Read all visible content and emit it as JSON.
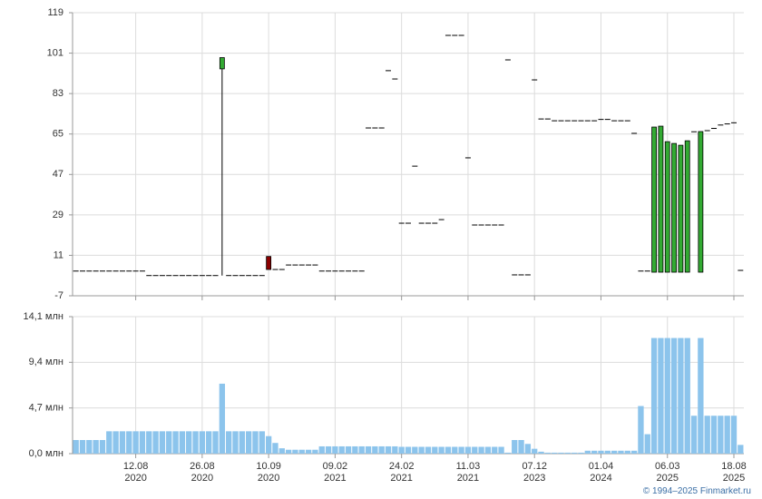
{
  "chart_data": [
    {
      "type": "candlestick",
      "open": [
        4,
        4,
        4,
        4,
        4,
        4,
        4,
        4,
        4,
        4,
        4,
        2,
        2,
        2,
        2,
        2,
        2,
        2,
        2,
        2,
        2,
        2,
        94,
        2,
        2,
        2,
        2,
        2,
        2,
        10.5,
        4.7,
        4.7,
        6.7,
        6.7,
        6.7,
        6.7,
        6.7,
        4,
        4,
        4,
        4,
        4,
        4,
        4,
        67.7,
        67.7,
        67.7,
        93.2,
        89.5,
        25.3,
        25.3,
        50.7,
        25.3,
        25.3,
        25.3,
        26.9,
        108.9,
        108.9,
        108.9,
        54.4,
        24.5,
        24.5,
        24.5,
        24.5,
        24.5,
        98,
        2.3,
        2.3,
        2.3,
        89.1,
        71.7,
        71.7,
        70.9,
        70.9,
        70.9,
        70.9,
        70.9,
        70.9,
        70.9,
        71.5,
        71.5,
        70.9,
        70.9,
        70.9,
        65.3,
        4,
        4,
        3.5,
        3.5,
        3.5,
        3.5,
        3.5,
        3.5,
        66,
        3.5,
        66.5,
        67.5,
        69,
        69.5,
        70,
        4.3
      ],
      "high": [
        4,
        4,
        4,
        4,
        4,
        4,
        4,
        4,
        4,
        4,
        4,
        2,
        2,
        2,
        2,
        2,
        2,
        2,
        2,
        2,
        2,
        2,
        99,
        2,
        2,
        2,
        2,
        2,
        2,
        10.5,
        4.7,
        4.7,
        6.7,
        6.7,
        6.7,
        6.7,
        6.7,
        4,
        4,
        4,
        4,
        4,
        4,
        4,
        67.7,
        67.7,
        67.7,
        93.2,
        89.5,
        25.3,
        25.3,
        50.7,
        25.3,
        25.3,
        25.3,
        26.9,
        108.9,
        108.9,
        108.9,
        54.4,
        24.5,
        24.5,
        24.5,
        24.5,
        24.5,
        98,
        2.3,
        2.3,
        2.3,
        89.1,
        71.7,
        71.7,
        70.9,
        70.9,
        70.9,
        70.9,
        70.9,
        70.9,
        70.9,
        71.5,
        71.5,
        70.9,
        70.9,
        70.9,
        65.3,
        4,
        4,
        68.1,
        68.5,
        61.6,
        60.8,
        60,
        62,
        66,
        66.1,
        66.5,
        67.5,
        69,
        69.5,
        70,
        4.3
      ],
      "low": [
        4,
        4,
        4,
        4,
        4,
        4,
        4,
        4,
        4,
        4,
        4,
        2,
        2,
        2,
        2,
        2,
        2,
        2,
        2,
        2,
        2,
        2,
        2,
        2,
        2,
        2,
        2,
        2,
        2,
        4.7,
        4.7,
        4.7,
        6.7,
        6.7,
        6.7,
        6.7,
        6.7,
        4,
        4,
        4,
        4,
        4,
        4,
        4,
        67.7,
        67.7,
        67.7,
        93.2,
        89.5,
        25.3,
        25.3,
        50.7,
        25.3,
        25.3,
        25.3,
        26.9,
        108.9,
        108.9,
        108.9,
        54.4,
        24.5,
        24.5,
        24.5,
        24.5,
        24.5,
        98,
        2.3,
        2.3,
        2.3,
        89.1,
        71.7,
        71.7,
        70.9,
        70.9,
        70.9,
        70.9,
        70.9,
        70.9,
        70.9,
        71.5,
        71.5,
        70.9,
        70.9,
        70.9,
        65.3,
        4,
        4,
        3.5,
        3.5,
        3.5,
        3.5,
        3.5,
        3.5,
        66,
        3.5,
        66.5,
        67.5,
        69,
        69.5,
        70,
        4.3
      ],
      "close": [
        4,
        4,
        4,
        4,
        4,
        4,
        4,
        4,
        4,
        4,
        4,
        2,
        2,
        2,
        2,
        2,
        2,
        2,
        2,
        2,
        2,
        2,
        99,
        2,
        2,
        2,
        2,
        2,
        2,
        4.7,
        4.7,
        4.7,
        6.7,
        6.7,
        6.7,
        6.7,
        6.7,
        4,
        4,
        4,
        4,
        4,
        4,
        4,
        67.7,
        67.7,
        67.7,
        93.2,
        89.5,
        25.3,
        25.3,
        50.7,
        25.3,
        25.3,
        25.3,
        26.9,
        108.9,
        108.9,
        108.9,
        54.4,
        24.5,
        24.5,
        24.5,
        24.5,
        24.5,
        98,
        2.3,
        2.3,
        2.3,
        89.1,
        71.7,
        71.7,
        70.9,
        70.9,
        70.9,
        70.9,
        70.9,
        70.9,
        70.9,
        71.5,
        71.5,
        70.9,
        70.9,
        70.9,
        65.3,
        4,
        4,
        68.1,
        68.5,
        61.6,
        60.8,
        60,
        62,
        66,
        66.1,
        66.5,
        67.5,
        69,
        69.5,
        70,
        4.3
      ],
      "up_color": "#33aa33",
      "down_color": "#8b0000",
      "ylim": [
        -7,
        119
      ],
      "yticks": [
        -7,
        11,
        29,
        47,
        65,
        83,
        101,
        119
      ],
      "grid": true
    },
    {
      "type": "bar",
      "categories": [
        null,
        null,
        null,
        null,
        null,
        null,
        null,
        null,
        null,
        [
          "12.08",
          "2020"
        ],
        null,
        null,
        null,
        null,
        null,
        null,
        null,
        null,
        null,
        [
          "26.08",
          "2020"
        ],
        null,
        null,
        null,
        null,
        null,
        null,
        null,
        null,
        null,
        [
          "10.09",
          "2020"
        ],
        null,
        null,
        null,
        null,
        null,
        null,
        null,
        null,
        null,
        [
          "09.02",
          "2021"
        ],
        null,
        null,
        null,
        null,
        null,
        null,
        null,
        null,
        null,
        [
          "24.02",
          "2021"
        ],
        null,
        null,
        null,
        null,
        null,
        null,
        null,
        null,
        null,
        [
          "11.03",
          "2021"
        ],
        null,
        null,
        null,
        null,
        null,
        null,
        null,
        null,
        null,
        [
          "07.12",
          "2023"
        ],
        null,
        null,
        null,
        null,
        null,
        null,
        null,
        null,
        null,
        [
          "01.04",
          "2024"
        ],
        null,
        null,
        null,
        null,
        null,
        null,
        null,
        null,
        null,
        [
          "06.03",
          "2025"
        ],
        null,
        null,
        null,
        null,
        null,
        null,
        null,
        null,
        null,
        [
          "18.08",
          "2025"
        ],
        null
      ],
      "values": [
        1.4,
        1.4,
        1.4,
        1.4,
        1.4,
        2.3,
        2.3,
        2.3,
        2.3,
        2.3,
        2.3,
        2.3,
        2.3,
        2.3,
        2.3,
        2.3,
        2.3,
        2.3,
        2.3,
        2.3,
        2.3,
        2.3,
        7.2,
        2.3,
        2.3,
        2.3,
        2.3,
        2.3,
        2.3,
        1.8,
        1.1,
        0.55,
        0.4,
        0.4,
        0.4,
        0.4,
        0.4,
        0.75,
        0.75,
        0.75,
        0.75,
        0.75,
        0.75,
        0.75,
        0.75,
        0.75,
        0.75,
        0.75,
        0.75,
        0.7,
        0.7,
        0.7,
        0.7,
        0.7,
        0.7,
        0.7,
        0.7,
        0.7,
        0.7,
        0.7,
        0.7,
        0.7,
        0.7,
        0.7,
        0.7,
        0.1,
        1.4,
        1.4,
        1.0,
        0.5,
        0.2,
        0.1,
        0.1,
        0.1,
        0.1,
        0.1,
        0.1,
        0.3,
        0.3,
        0.3,
        0.3,
        0.3,
        0.3,
        0.3,
        0.3,
        4.9,
        2.0,
        11.9,
        11.9,
        11.9,
        11.9,
        11.9,
        11.9,
        3.9,
        11.9,
        3.9,
        3.9,
        3.9,
        3.9,
        3.9,
        0.9
      ],
      "color": "#8cc4ec",
      "ylim": [
        0,
        14.1
      ],
      "yticks": [
        {
          "value": 0,
          "label": "0,0 млн"
        },
        {
          "value": 4.7,
          "label": "4,7 млн"
        },
        {
          "value": 9.4,
          "label": "9,4 млн"
        },
        {
          "value": 14.1,
          "label": "14,1 млн"
        }
      ],
      "grid": true
    }
  ],
  "footer": "© 1994–2025 Finmarket.ru"
}
